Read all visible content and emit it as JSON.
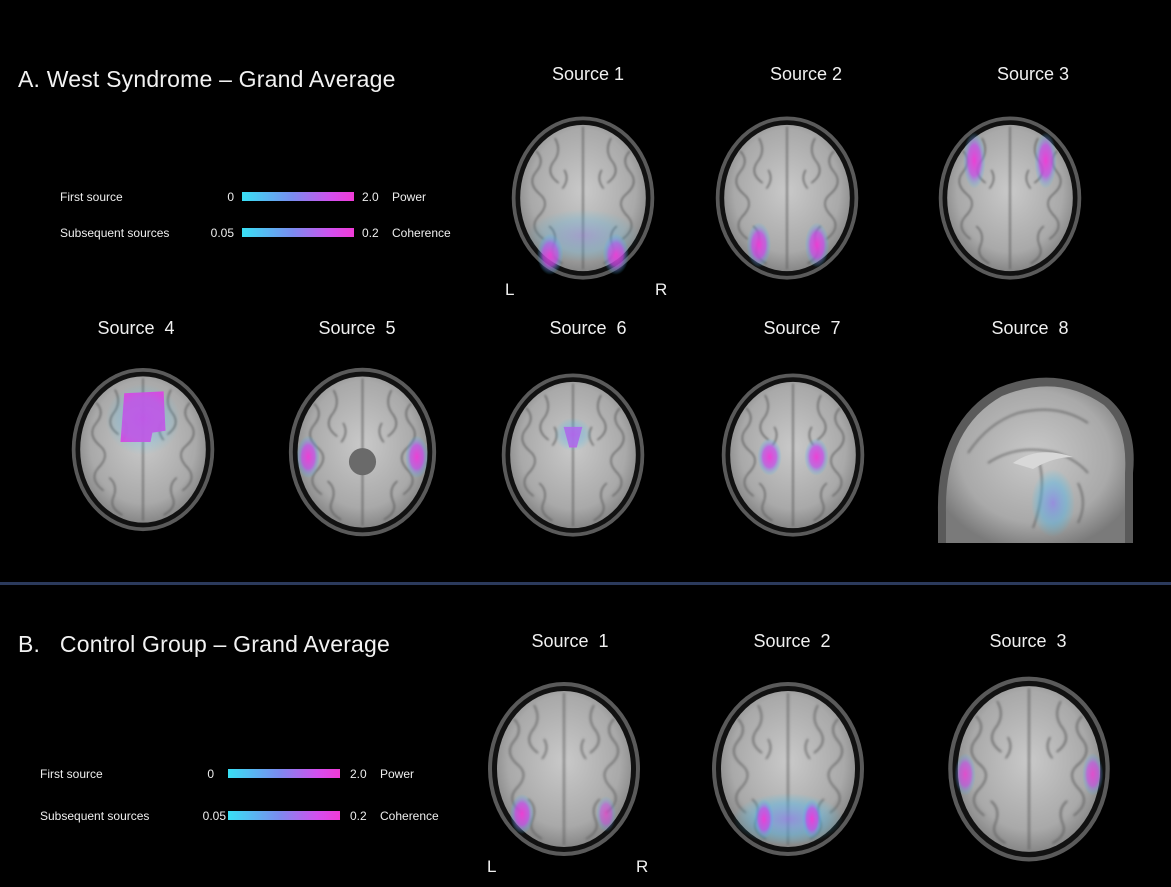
{
  "panel_a": {
    "title": "A. West Syndrome – Grand Average",
    "legend": {
      "first": {
        "label": "First source",
        "min": "0",
        "max": "2.0",
        "measure": "Power"
      },
      "subsequent": {
        "label": "Subsequent sources",
        "min": "0.05",
        "max": "0.2",
        "measure": "Coherence"
      }
    },
    "sources": [
      {
        "label": "Source 1"
      },
      {
        "label": "Source 2"
      },
      {
        "label": "Source 3"
      },
      {
        "label": "Source  4"
      },
      {
        "label": "Source  5"
      },
      {
        "label": "Source  6"
      },
      {
        "label": "Source  7"
      },
      {
        "label": "Source  8"
      }
    ],
    "left_marker": "L",
    "right_marker": "R"
  },
  "panel_b": {
    "title": "B.   Control Group – Grand Average",
    "legend": {
      "first": {
        "label": "First source",
        "min": "0",
        "max": "2.0",
        "measure": "Power"
      },
      "subsequent": {
        "label": "Subsequent sources",
        "min": "0.05",
        "max": "0.2",
        "measure": "Coherence"
      }
    },
    "sources": [
      {
        "label": "Source  1"
      },
      {
        "label": "Source  2"
      },
      {
        "label": "Source  3"
      }
    ],
    "left_marker": "L",
    "right_marker": "R"
  },
  "colors": {
    "background": "#000000",
    "scale_low": "#38e0f4",
    "scale_high": "#f03bd6",
    "divider": "#2b3a5c"
  }
}
